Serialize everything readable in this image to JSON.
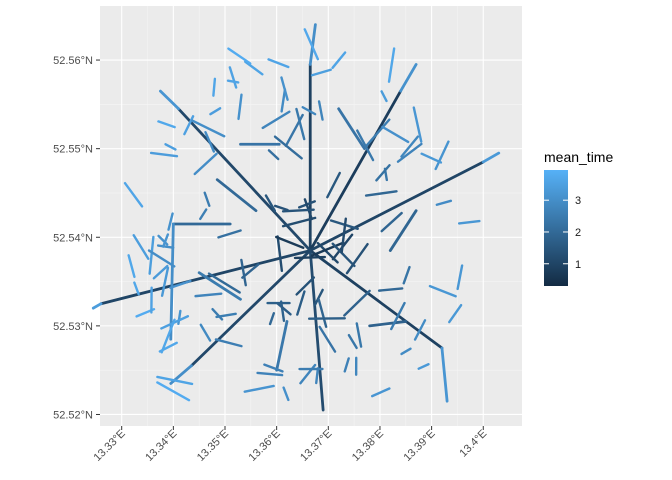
{
  "chart_data": {
    "type": "map",
    "x_ticks": [
      "13.33°E",
      "13.34°E",
      "13.35°E",
      "13.36°E",
      "13.37°E",
      "13.38°E",
      "13.39°E",
      "13.4°E"
    ],
    "x_tick_values": [
      13.33,
      13.34,
      13.35,
      13.36,
      13.37,
      13.38,
      13.39,
      13.4
    ],
    "y_ticks": [
      "52.52°N",
      "52.53°N",
      "52.54°N",
      "52.55°N",
      "52.56°N"
    ],
    "y_tick_values": [
      52.52,
      52.53,
      52.54,
      52.55,
      52.56
    ],
    "xlim": [
      13.3258,
      13.4075
    ],
    "ylim": [
      52.5187,
      52.5661
    ],
    "grid": true,
    "legend": {
      "title": "mean_time",
      "position": "right",
      "ticks": [
        "1",
        "2",
        "3"
      ],
      "tick_values": [
        1,
        2,
        3
      ],
      "range": [
        0.3,
        3.95
      ],
      "colors": {
        "low": "#132b43",
        "high": "#56b1f7"
      }
    },
    "center": [
      13.3665,
      52.5385
    ],
    "segments": [
      {
        "from": [
          13.3665,
          52.5385
        ],
        "to": [
          13.3665,
          52.5595
        ],
        "value": 0.9
      },
      {
        "from": [
          13.3665,
          52.5595
        ],
        "to": [
          13.3675,
          52.564
        ],
        "value": 3.0
      },
      {
        "from": [
          13.3665,
          52.5385
        ],
        "to": [
          13.384,
          52.5565
        ],
        "value": 0.8
      },
      {
        "from": [
          13.384,
          52.5565
        ],
        "to": [
          13.387,
          52.5595
        ],
        "value": 3.1
      },
      {
        "from": [
          13.3665,
          52.5385
        ],
        "to": [
          13.4,
          52.5485
        ],
        "value": 1.0
      },
      {
        "from": [
          13.4,
          52.5485
        ],
        "to": [
          13.403,
          52.5495
        ],
        "value": 3.3
      },
      {
        "from": [
          13.3665,
          52.5385
        ],
        "to": [
          13.392,
          52.5275
        ],
        "value": 0.9
      },
      {
        "from": [
          13.392,
          52.5275
        ],
        "to": [
          13.393,
          52.5215
        ],
        "value": 3.2
      },
      {
        "from": [
          13.3665,
          52.5385
        ],
        "to": [
          13.369,
          52.5205
        ],
        "value": 1.2
      },
      {
        "from": [
          13.3665,
          52.5385
        ],
        "to": [
          13.3435,
          52.5255
        ],
        "value": 1.1
      },
      {
        "from": [
          13.3435,
          52.5255
        ],
        "to": [
          13.3395,
          52.5235
        ],
        "value": 3.0
      },
      {
        "from": [
          13.3665,
          52.5385
        ],
        "to": [
          13.326,
          52.5325
        ],
        "value": 1.0
      },
      {
        "from": [
          13.326,
          52.5325
        ],
        "to": [
          13.3245,
          52.532
        ],
        "value": 3.4
      },
      {
        "from": [
          13.3665,
          52.5385
        ],
        "to": [
          13.341,
          52.5545
        ],
        "value": 1.1
      },
      {
        "from": [
          13.341,
          52.5545
        ],
        "to": [
          13.3375,
          52.5565
        ],
        "value": 3.2
      },
      {
        "from": [
          13.351,
          52.5415
        ],
        "to": [
          13.34,
          52.5415
        ],
        "value": 2.0
      },
      {
        "from": [
          13.34,
          52.5415
        ],
        "to": [
          13.3395,
          52.5285
        ],
        "value": 3.0
      },
      {
        "from": [
          13.3605,
          52.5505
        ],
        "to": [
          13.353,
          52.5505
        ],
        "value": 2.3
      },
      {
        "from": [
          13.356,
          52.543
        ],
        "to": [
          13.3485,
          52.5465
        ],
        "value": 2.0
      },
      {
        "from": [
          13.372,
          52.5545
        ],
        "to": [
          13.377,
          52.55
        ],
        "value": 2.3
      },
      {
        "from": [
          13.382,
          52.5385
        ],
        "to": [
          13.387,
          52.543
        ],
        "value": 1.9
      },
      {
        "from": [
          13.378,
          52.53
        ],
        "to": [
          13.385,
          52.5305
        ],
        "value": 1.8
      },
      {
        "from": [
          13.345,
          52.536
        ],
        "to": [
          13.353,
          52.533
        ],
        "value": 2.5
      },
      {
        "from": [
          13.362,
          52.5305
        ],
        "to": [
          13.36,
          52.525
        ],
        "value": 2.4
      }
    ]
  }
}
